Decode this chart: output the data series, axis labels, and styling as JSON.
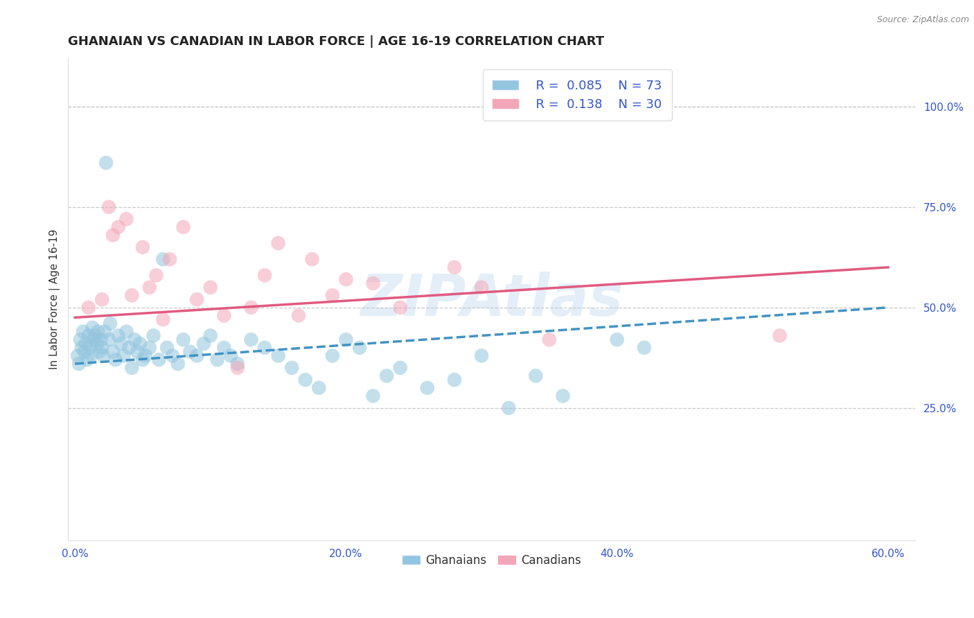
{
  "title": "GHANAIAN VS CANADIAN IN LABOR FORCE | AGE 16-19 CORRELATION CHART",
  "source_text": "Source: ZipAtlas.com",
  "ylabel": "In Labor Force | Age 16-19",
  "right_ytick_labels": [
    "25.0%",
    "50.0%",
    "75.0%",
    "100.0%"
  ],
  "right_ytick_values": [
    0.25,
    0.5,
    0.75,
    1.0
  ],
  "xlim": [
    -0.005,
    0.62
  ],
  "ylim": [
    -0.08,
    1.12
  ],
  "xtick_labels": [
    "0.0%",
    "20.0%",
    "40.0%",
    "60.0%"
  ],
  "xtick_values": [
    0.0,
    0.2,
    0.4,
    0.6
  ],
  "ghanaian_R": 0.085,
  "ghanaian_N": 73,
  "canadian_R": 0.138,
  "canadian_N": 30,
  "ghanaian_color": "#92c5de",
  "canadian_color": "#f4a6b8",
  "ghanaian_line_color": "#4393c3",
  "canadian_line_color": "#e05a80",
  "background_color": "#ffffff",
  "grid_color": "#c8c8c8",
  "watermark": "ZIPAtlas",
  "title_fontsize": 13,
  "axis_label_fontsize": 11,
  "tick_fontsize": 11,
  "legend_fontsize": 13,
  "ghanaian_x": [
    0.002,
    0.003,
    0.004,
    0.005,
    0.006,
    0.007,
    0.008,
    0.009,
    0.01,
    0.011,
    0.012,
    0.013,
    0.014,
    0.015,
    0.016,
    0.017,
    0.018,
    0.019,
    0.02,
    0.021,
    0.022,
    0.023,
    0.025,
    0.026,
    0.028,
    0.03,
    0.032,
    0.034,
    0.036,
    0.038,
    0.04,
    0.042,
    0.044,
    0.046,
    0.048,
    0.05,
    0.052,
    0.055,
    0.058,
    0.062,
    0.065,
    0.068,
    0.072,
    0.076,
    0.08,
    0.085,
    0.09,
    0.095,
    0.1,
    0.105,
    0.11,
    0.115,
    0.12,
    0.13,
    0.14,
    0.15,
    0.16,
    0.17,
    0.18,
    0.19,
    0.2,
    0.21,
    0.22,
    0.23,
    0.24,
    0.26,
    0.28,
    0.3,
    0.32,
    0.34,
    0.36,
    0.4,
    0.42
  ],
  "ghanaian_y": [
    0.38,
    0.36,
    0.42,
    0.4,
    0.44,
    0.39,
    0.41,
    0.37,
    0.43,
    0.4,
    0.38,
    0.45,
    0.42,
    0.43,
    0.41,
    0.44,
    0.39,
    0.42,
    0.4,
    0.38,
    0.44,
    0.86,
    0.42,
    0.46,
    0.39,
    0.37,
    0.43,
    0.41,
    0.38,
    0.44,
    0.4,
    0.35,
    0.42,
    0.39,
    0.41,
    0.37,
    0.38,
    0.4,
    0.43,
    0.37,
    0.62,
    0.4,
    0.38,
    0.36,
    0.42,
    0.39,
    0.38,
    0.41,
    0.43,
    0.37,
    0.4,
    0.38,
    0.36,
    0.42,
    0.4,
    0.38,
    0.35,
    0.32,
    0.3,
    0.38,
    0.42,
    0.4,
    0.28,
    0.33,
    0.35,
    0.3,
    0.32,
    0.38,
    0.25,
    0.33,
    0.28,
    0.42,
    0.4
  ],
  "canadian_x": [
    0.01,
    0.02,
    0.025,
    0.028,
    0.032,
    0.038,
    0.042,
    0.05,
    0.055,
    0.06,
    0.065,
    0.07,
    0.08,
    0.09,
    0.1,
    0.11,
    0.12,
    0.13,
    0.14,
    0.15,
    0.165,
    0.175,
    0.19,
    0.2,
    0.22,
    0.24,
    0.28,
    0.3,
    0.35,
    0.52
  ],
  "canadian_y": [
    0.5,
    0.52,
    0.75,
    0.68,
    0.7,
    0.72,
    0.53,
    0.65,
    0.55,
    0.58,
    0.47,
    0.62,
    0.7,
    0.52,
    0.55,
    0.48,
    0.35,
    0.5,
    0.58,
    0.66,
    0.48,
    0.62,
    0.53,
    0.57,
    0.56,
    0.5,
    0.6,
    0.55,
    0.42,
    0.43
  ],
  "ghanaian_line_x": [
    0.0,
    0.6
  ],
  "ghanaian_line_y": [
    0.36,
    0.5
  ],
  "canadian_line_x": [
    0.0,
    0.6
  ],
  "canadian_line_y": [
    0.475,
    0.6
  ]
}
